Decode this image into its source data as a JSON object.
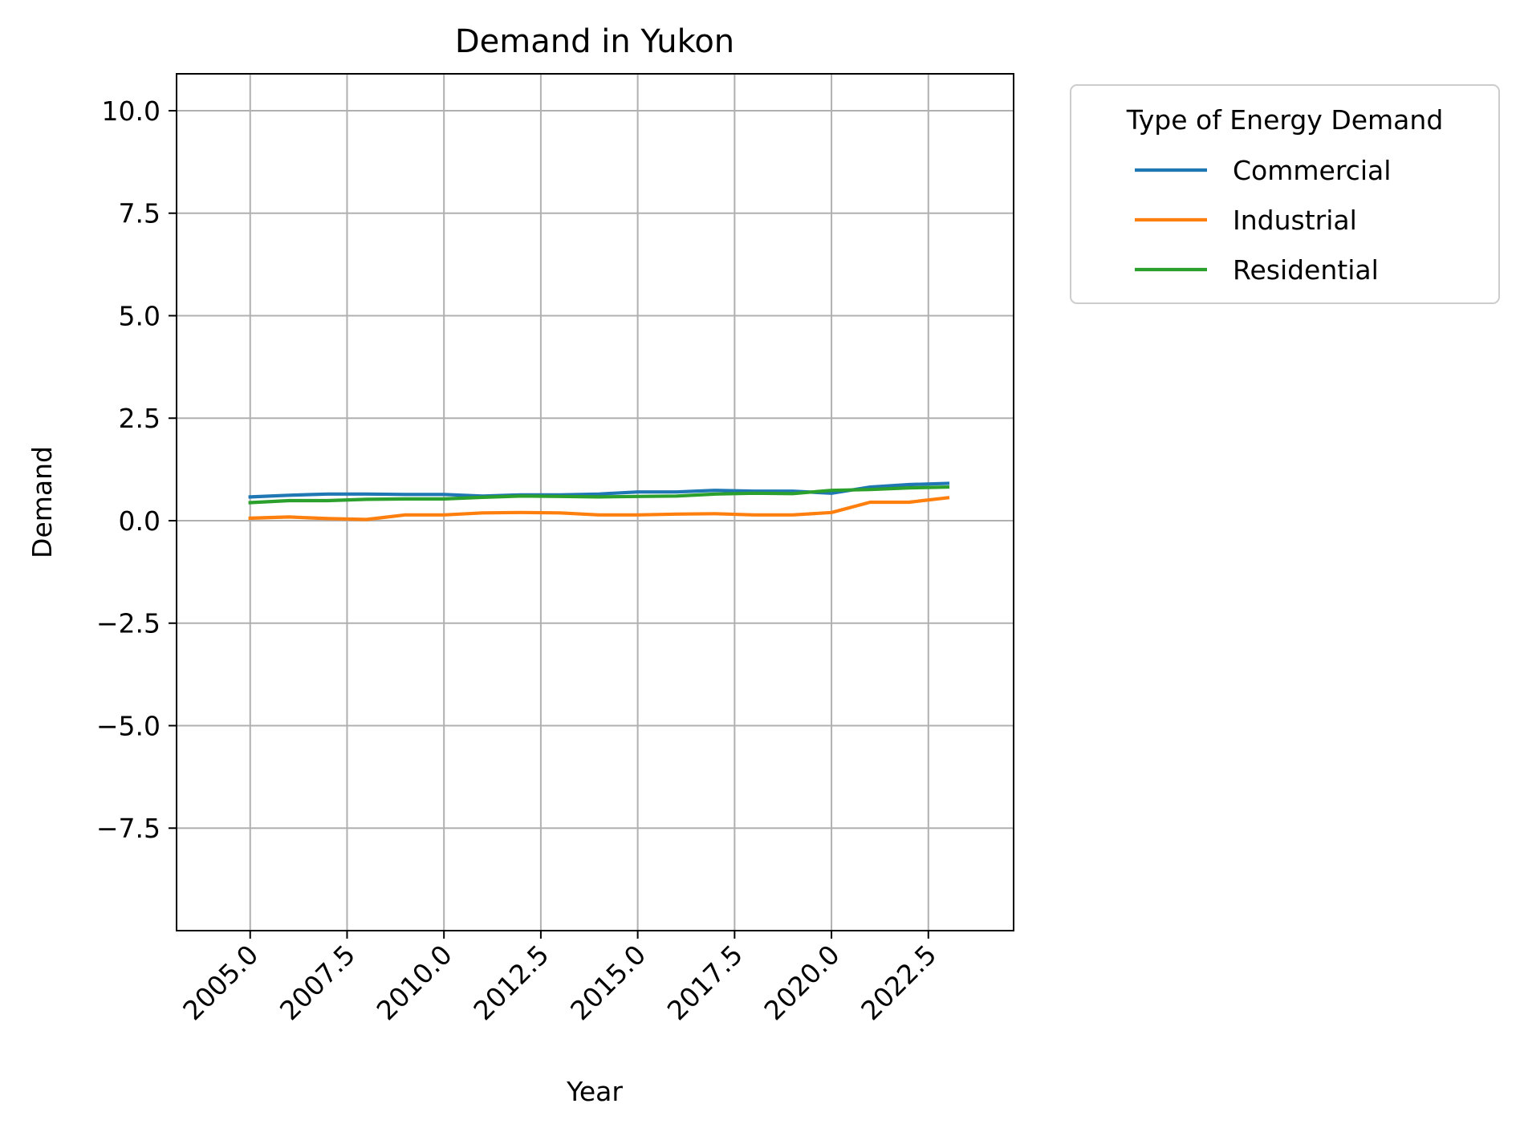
{
  "chart_data": {
    "type": "line",
    "title": "Demand in Yukon",
    "xlabel": "Year",
    "ylabel": "Demand",
    "xlim": [
      2003.1,
      2024.7
    ],
    "ylim": [
      -10.0,
      10.9
    ],
    "xticks": [
      2005.0,
      2007.5,
      2010.0,
      2012.5,
      2015.0,
      2017.5,
      2020.0,
      2022.5
    ],
    "xtick_labels": [
      "2005.0",
      "2007.5",
      "2010.0",
      "2012.5",
      "2015.0",
      "2017.5",
      "2020.0",
      "2022.5"
    ],
    "yticks": [
      10.0,
      7.5,
      5.0,
      2.5,
      0.0,
      -2.5,
      -5.0,
      -7.5
    ],
    "ytick_labels": [
      "10.0",
      "7.5",
      "5.0",
      "2.5",
      "0.0",
      "−2.5",
      "−5.0",
      "−7.5"
    ],
    "grid": true,
    "legend": {
      "title": "Type of Energy Demand",
      "placement": "outside-top-right"
    },
    "x": [
      2005,
      2006,
      2007,
      2008,
      2009,
      2010,
      2011,
      2012,
      2013,
      2014,
      2015,
      2016,
      2017,
      2018,
      2019,
      2020,
      2021,
      2022,
      2023
    ],
    "series": [
      {
        "name": "Commercial",
        "color": "#1f77b4",
        "values": [
          0.58,
          0.62,
          0.65,
          0.65,
          0.64,
          0.64,
          0.6,
          0.63,
          0.63,
          0.65,
          0.7,
          0.7,
          0.74,
          0.72,
          0.72,
          0.67,
          0.82,
          0.88,
          0.91
        ]
      },
      {
        "name": "Industrial",
        "color": "#ff7f0e",
        "values": [
          0.06,
          0.09,
          0.05,
          0.03,
          0.14,
          0.14,
          0.19,
          0.2,
          0.19,
          0.14,
          0.14,
          0.16,
          0.17,
          0.14,
          0.14,
          0.2,
          0.45,
          0.45,
          0.56
        ]
      },
      {
        "name": "Residential",
        "color": "#2ca02c",
        "values": [
          0.44,
          0.49,
          0.49,
          0.52,
          0.53,
          0.53,
          0.57,
          0.6,
          0.59,
          0.58,
          0.59,
          0.6,
          0.65,
          0.67,
          0.66,
          0.74,
          0.76,
          0.8,
          0.82
        ]
      }
    ]
  }
}
